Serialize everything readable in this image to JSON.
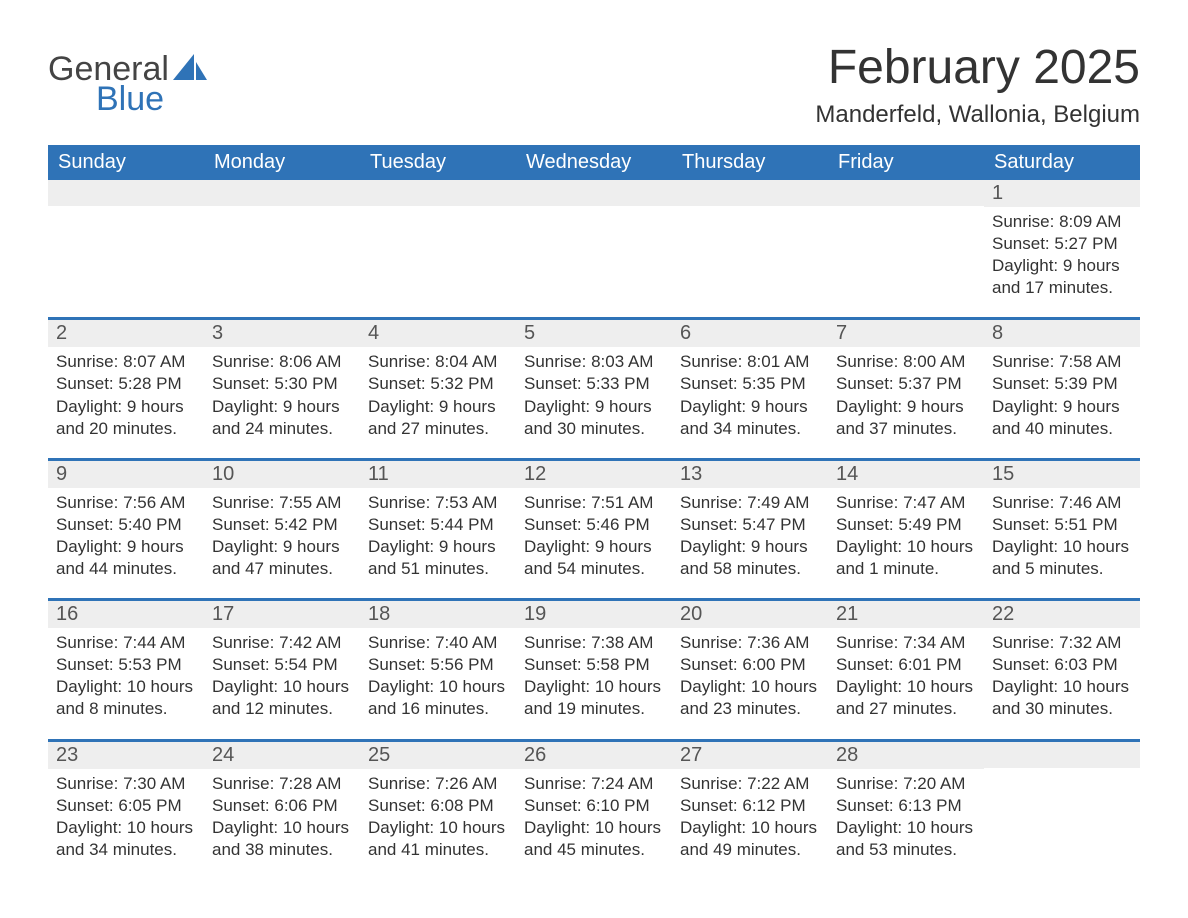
{
  "colors": {
    "brand_blue": "#2f73b7",
    "header_text": "#ffffff",
    "day_bar_bg": "#eeeeee",
    "day_bar_text": "#555555",
    "body_text": "#333333",
    "page_bg": "#ffffff"
  },
  "typography": {
    "title_fontsize": 48,
    "location_fontsize": 24,
    "weekday_fontsize": 20,
    "daynum_fontsize": 20,
    "body_fontsize": 17
  },
  "logo": {
    "word1": "General",
    "word2": "Blue"
  },
  "title": "February 2025",
  "location": "Manderfeld, Wallonia, Belgium",
  "weekdays": [
    "Sunday",
    "Monday",
    "Tuesday",
    "Wednesday",
    "Thursday",
    "Friday",
    "Saturday"
  ],
  "labels": {
    "sunrise_prefix": "Sunrise: ",
    "sunset_prefix": "Sunset: ",
    "daylight_prefix": "Daylight: "
  },
  "weeks": [
    [
      {
        "blank": true
      },
      {
        "blank": true
      },
      {
        "blank": true
      },
      {
        "blank": true
      },
      {
        "blank": true
      },
      {
        "blank": true
      },
      {
        "n": "1",
        "sunrise": "8:09 AM",
        "sunset": "5:27 PM",
        "daylight": "9 hours and 17 minutes."
      }
    ],
    [
      {
        "n": "2",
        "sunrise": "8:07 AM",
        "sunset": "5:28 PM",
        "daylight": "9 hours and 20 minutes."
      },
      {
        "n": "3",
        "sunrise": "8:06 AM",
        "sunset": "5:30 PM",
        "daylight": "9 hours and 24 minutes."
      },
      {
        "n": "4",
        "sunrise": "8:04 AM",
        "sunset": "5:32 PM",
        "daylight": "9 hours and 27 minutes."
      },
      {
        "n": "5",
        "sunrise": "8:03 AM",
        "sunset": "5:33 PM",
        "daylight": "9 hours and 30 minutes."
      },
      {
        "n": "6",
        "sunrise": "8:01 AM",
        "sunset": "5:35 PM",
        "daylight": "9 hours and 34 minutes."
      },
      {
        "n": "7",
        "sunrise": "8:00 AM",
        "sunset": "5:37 PM",
        "daylight": "9 hours and 37 minutes."
      },
      {
        "n": "8",
        "sunrise": "7:58 AM",
        "sunset": "5:39 PM",
        "daylight": "9 hours and 40 minutes."
      }
    ],
    [
      {
        "n": "9",
        "sunrise": "7:56 AM",
        "sunset": "5:40 PM",
        "daylight": "9 hours and 44 minutes."
      },
      {
        "n": "10",
        "sunrise": "7:55 AM",
        "sunset": "5:42 PM",
        "daylight": "9 hours and 47 minutes."
      },
      {
        "n": "11",
        "sunrise": "7:53 AM",
        "sunset": "5:44 PM",
        "daylight": "9 hours and 51 minutes."
      },
      {
        "n": "12",
        "sunrise": "7:51 AM",
        "sunset": "5:46 PM",
        "daylight": "9 hours and 54 minutes."
      },
      {
        "n": "13",
        "sunrise": "7:49 AM",
        "sunset": "5:47 PM",
        "daylight": "9 hours and 58 minutes."
      },
      {
        "n": "14",
        "sunrise": "7:47 AM",
        "sunset": "5:49 PM",
        "daylight": "10 hours and 1 minute."
      },
      {
        "n": "15",
        "sunrise": "7:46 AM",
        "sunset": "5:51 PM",
        "daylight": "10 hours and 5 minutes."
      }
    ],
    [
      {
        "n": "16",
        "sunrise": "7:44 AM",
        "sunset": "5:53 PM",
        "daylight": "10 hours and 8 minutes."
      },
      {
        "n": "17",
        "sunrise": "7:42 AM",
        "sunset": "5:54 PM",
        "daylight": "10 hours and 12 minutes."
      },
      {
        "n": "18",
        "sunrise": "7:40 AM",
        "sunset": "5:56 PM",
        "daylight": "10 hours and 16 minutes."
      },
      {
        "n": "19",
        "sunrise": "7:38 AM",
        "sunset": "5:58 PM",
        "daylight": "10 hours and 19 minutes."
      },
      {
        "n": "20",
        "sunrise": "7:36 AM",
        "sunset": "6:00 PM",
        "daylight": "10 hours and 23 minutes."
      },
      {
        "n": "21",
        "sunrise": "7:34 AM",
        "sunset": "6:01 PM",
        "daylight": "10 hours and 27 minutes."
      },
      {
        "n": "22",
        "sunrise": "7:32 AM",
        "sunset": "6:03 PM",
        "daylight": "10 hours and 30 minutes."
      }
    ],
    [
      {
        "n": "23",
        "sunrise": "7:30 AM",
        "sunset": "6:05 PM",
        "daylight": "10 hours and 34 minutes."
      },
      {
        "n": "24",
        "sunrise": "7:28 AM",
        "sunset": "6:06 PM",
        "daylight": "10 hours and 38 minutes."
      },
      {
        "n": "25",
        "sunrise": "7:26 AM",
        "sunset": "6:08 PM",
        "daylight": "10 hours and 41 minutes."
      },
      {
        "n": "26",
        "sunrise": "7:24 AM",
        "sunset": "6:10 PM",
        "daylight": "10 hours and 45 minutes."
      },
      {
        "n": "27",
        "sunrise": "7:22 AM",
        "sunset": "6:12 PM",
        "daylight": "10 hours and 49 minutes."
      },
      {
        "n": "28",
        "sunrise": "7:20 AM",
        "sunset": "6:13 PM",
        "daylight": "10 hours and 53 minutes."
      },
      {
        "blank": true
      }
    ]
  ]
}
